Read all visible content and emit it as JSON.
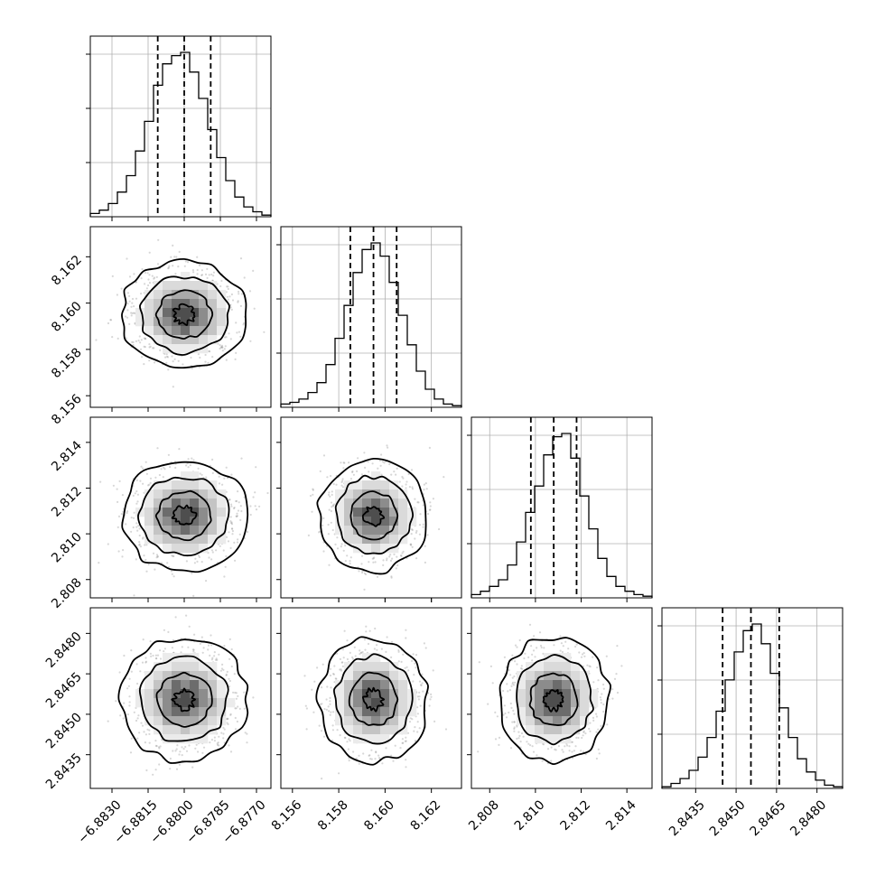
{
  "chart_data": {
    "type": "corner",
    "parameters": [
      {
        "name": "",
        "range": [
          -6.8839,
          -6.8764
        ],
        "ticks": [
          -6.883,
          -6.8815,
          -6.88,
          -6.8785,
          -6.877
        ],
        "tick_labels": [
          "−6.8830",
          "−6.8815",
          "−6.8800",
          "−6.8785",
          "−6.8770"
        ],
        "quantiles": [
          -6.8811,
          -6.88,
          -6.8789
        ],
        "median": -6.88,
        "sigma": 0.00105
      },
      {
        "name": "",
        "range": [
          8.1555,
          8.1633
        ],
        "ticks": [
          8.156,
          8.158,
          8.16,
          8.162
        ],
        "tick_labels": [
          "8.156",
          "8.158",
          "8.160",
          "8.162"
        ],
        "quantiles": [
          8.1585,
          8.1595,
          8.1605
        ],
        "median": 8.1595,
        "sigma": 0.00095
      },
      {
        "name": "",
        "range": [
          2.8072,
          2.8151
        ],
        "ticks": [
          2.808,
          2.81,
          2.812,
          2.814
        ],
        "tick_labels": [
          "2.808",
          "2.810",
          "2.812",
          "2.814"
        ],
        "quantiles": [
          2.8098,
          2.8108,
          2.8118
        ],
        "median": 2.8108,
        "sigma": 0.00098
      },
      {
        "name": "",
        "range": [
          2.84225,
          2.84895
        ],
        "ticks": [
          2.8435,
          2.845,
          2.8465,
          2.848
        ],
        "tick_labels": [
          "2.8435",
          "2.8450",
          "2.8465",
          "2.8480"
        ],
        "quantiles": [
          2.8445,
          2.84555,
          2.8466
        ],
        "median": 2.84555,
        "sigma": 0.00092
      }
    ],
    "histograms": [
      [
        0.02,
        0.04,
        0.08,
        0.15,
        0.25,
        0.4,
        0.58,
        0.8,
        0.93,
        0.98,
        1.0,
        0.88,
        0.72,
        0.53,
        0.36,
        0.22,
        0.12,
        0.06,
        0.03,
        0.01
      ],
      [
        0.02,
        0.03,
        0.05,
        0.09,
        0.15,
        0.26,
        0.42,
        0.62,
        0.82,
        0.96,
        1.0,
        0.92,
        0.76,
        0.56,
        0.38,
        0.22,
        0.11,
        0.05,
        0.02,
        0.01
      ],
      [
        0.02,
        0.04,
        0.07,
        0.11,
        0.2,
        0.34,
        0.52,
        0.68,
        0.87,
        0.98,
        1.0,
        0.85,
        0.62,
        0.42,
        0.24,
        0.13,
        0.07,
        0.04,
        0.02,
        0.01
      ],
      [
        0.01,
        0.03,
        0.06,
        0.11,
        0.19,
        0.31,
        0.47,
        0.66,
        0.83,
        0.96,
        1.0,
        0.88,
        0.7,
        0.49,
        0.31,
        0.18,
        0.1,
        0.05,
        0.02,
        0.01
      ]
    ],
    "grid": true
  }
}
